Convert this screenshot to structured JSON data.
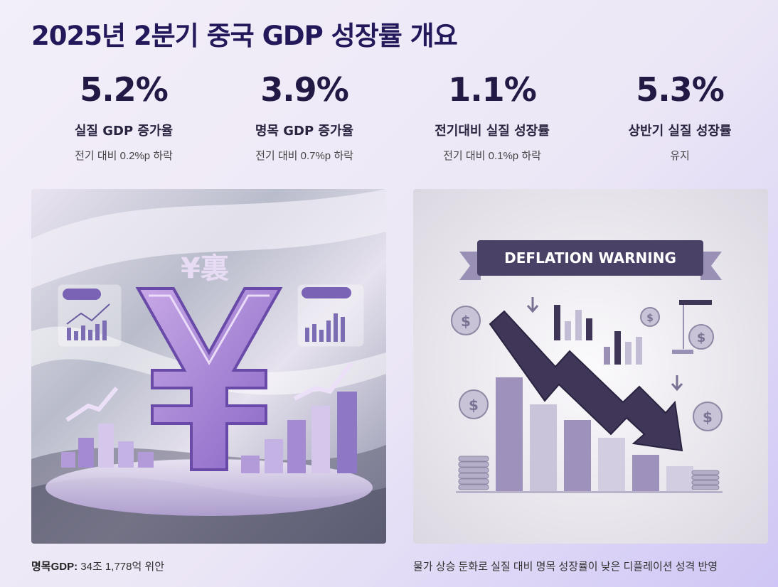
{
  "title": "2025년 2분기 중국 GDP 성장률 개요",
  "stats": [
    {
      "value": "5.2%",
      "label": "실질 GDP 증가율",
      "desc": "전기 대비 0.2%p 하락"
    },
    {
      "value": "3.9%",
      "label": "명목 GDP 증가율",
      "desc": "전기 대비 0.7%p 하락"
    },
    {
      "value": "1.1%",
      "label": "전기대비 실질 성장률",
      "desc": "전기 대비 0.1%p 하락"
    },
    {
      "value": "5.3%",
      "label": "상반기 실질 성장률",
      "desc": "유지"
    }
  ],
  "left_image": {
    "text": "¥裏",
    "icon": "yuan-icon"
  },
  "right_image": {
    "banner": "DEFLATION WARNING",
    "icon": "down-arrow-icon"
  },
  "captions": {
    "left_label": "명목GDP:",
    "left_value": " 34조 1,778억 위안",
    "right": "물가 상승 둔화로 실질 대비 명목 성장률이 낮은 디플레이션 성격 반영"
  },
  "colors": {
    "title": "#22185a",
    "accent_purple": "#8f78c8",
    "dark_purple": "#3e3557"
  }
}
